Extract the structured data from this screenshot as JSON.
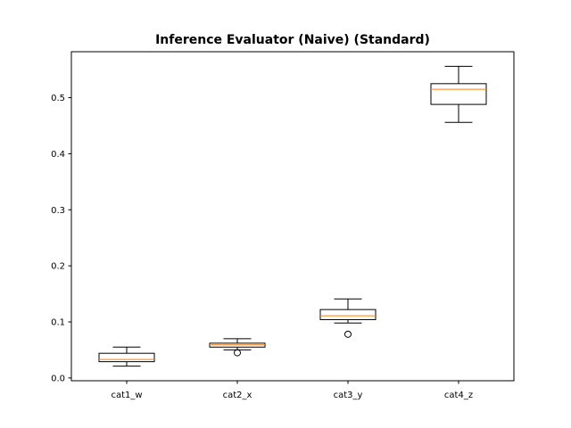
{
  "chart_data": {
    "type": "box",
    "title": "Inference Evaluator (Naive) (Standard)",
    "xlabel": "",
    "ylabel": "",
    "ylim": [
      -0.005,
      0.582
    ],
    "y_ticks": [
      0.0,
      0.1,
      0.2,
      0.3,
      0.4,
      0.5
    ],
    "y_tick_labels": [
      "0.0",
      "0.1",
      "0.2",
      "0.3",
      "0.4",
      "0.5"
    ],
    "categories": [
      "cat1_w",
      "cat2_x",
      "cat3_y",
      "cat4_z"
    ],
    "boxes": [
      {
        "category": "cat1_w",
        "whisker_low": 0.021,
        "q1": 0.029,
        "median": 0.033,
        "q3": 0.044,
        "whisker_high": 0.055,
        "outliers": []
      },
      {
        "category": "cat2_x",
        "whisker_low": 0.05,
        "q1": 0.055,
        "median": 0.059,
        "q3": 0.062,
        "whisker_high": 0.07,
        "outliers": [
          0.045
        ]
      },
      {
        "category": "cat3_y",
        "whisker_low": 0.098,
        "q1": 0.104,
        "median": 0.111,
        "q3": 0.122,
        "whisker_high": 0.141,
        "outliers": [
          0.078
        ]
      },
      {
        "category": "cat4_z",
        "whisker_low": 0.456,
        "q1": 0.488,
        "median": 0.515,
        "q3": 0.525,
        "whisker_high": 0.556,
        "outliers": []
      }
    ],
    "grid": false,
    "colors": {
      "box": "#000000",
      "median": "#ff7f0e",
      "background": "#ffffff"
    }
  }
}
